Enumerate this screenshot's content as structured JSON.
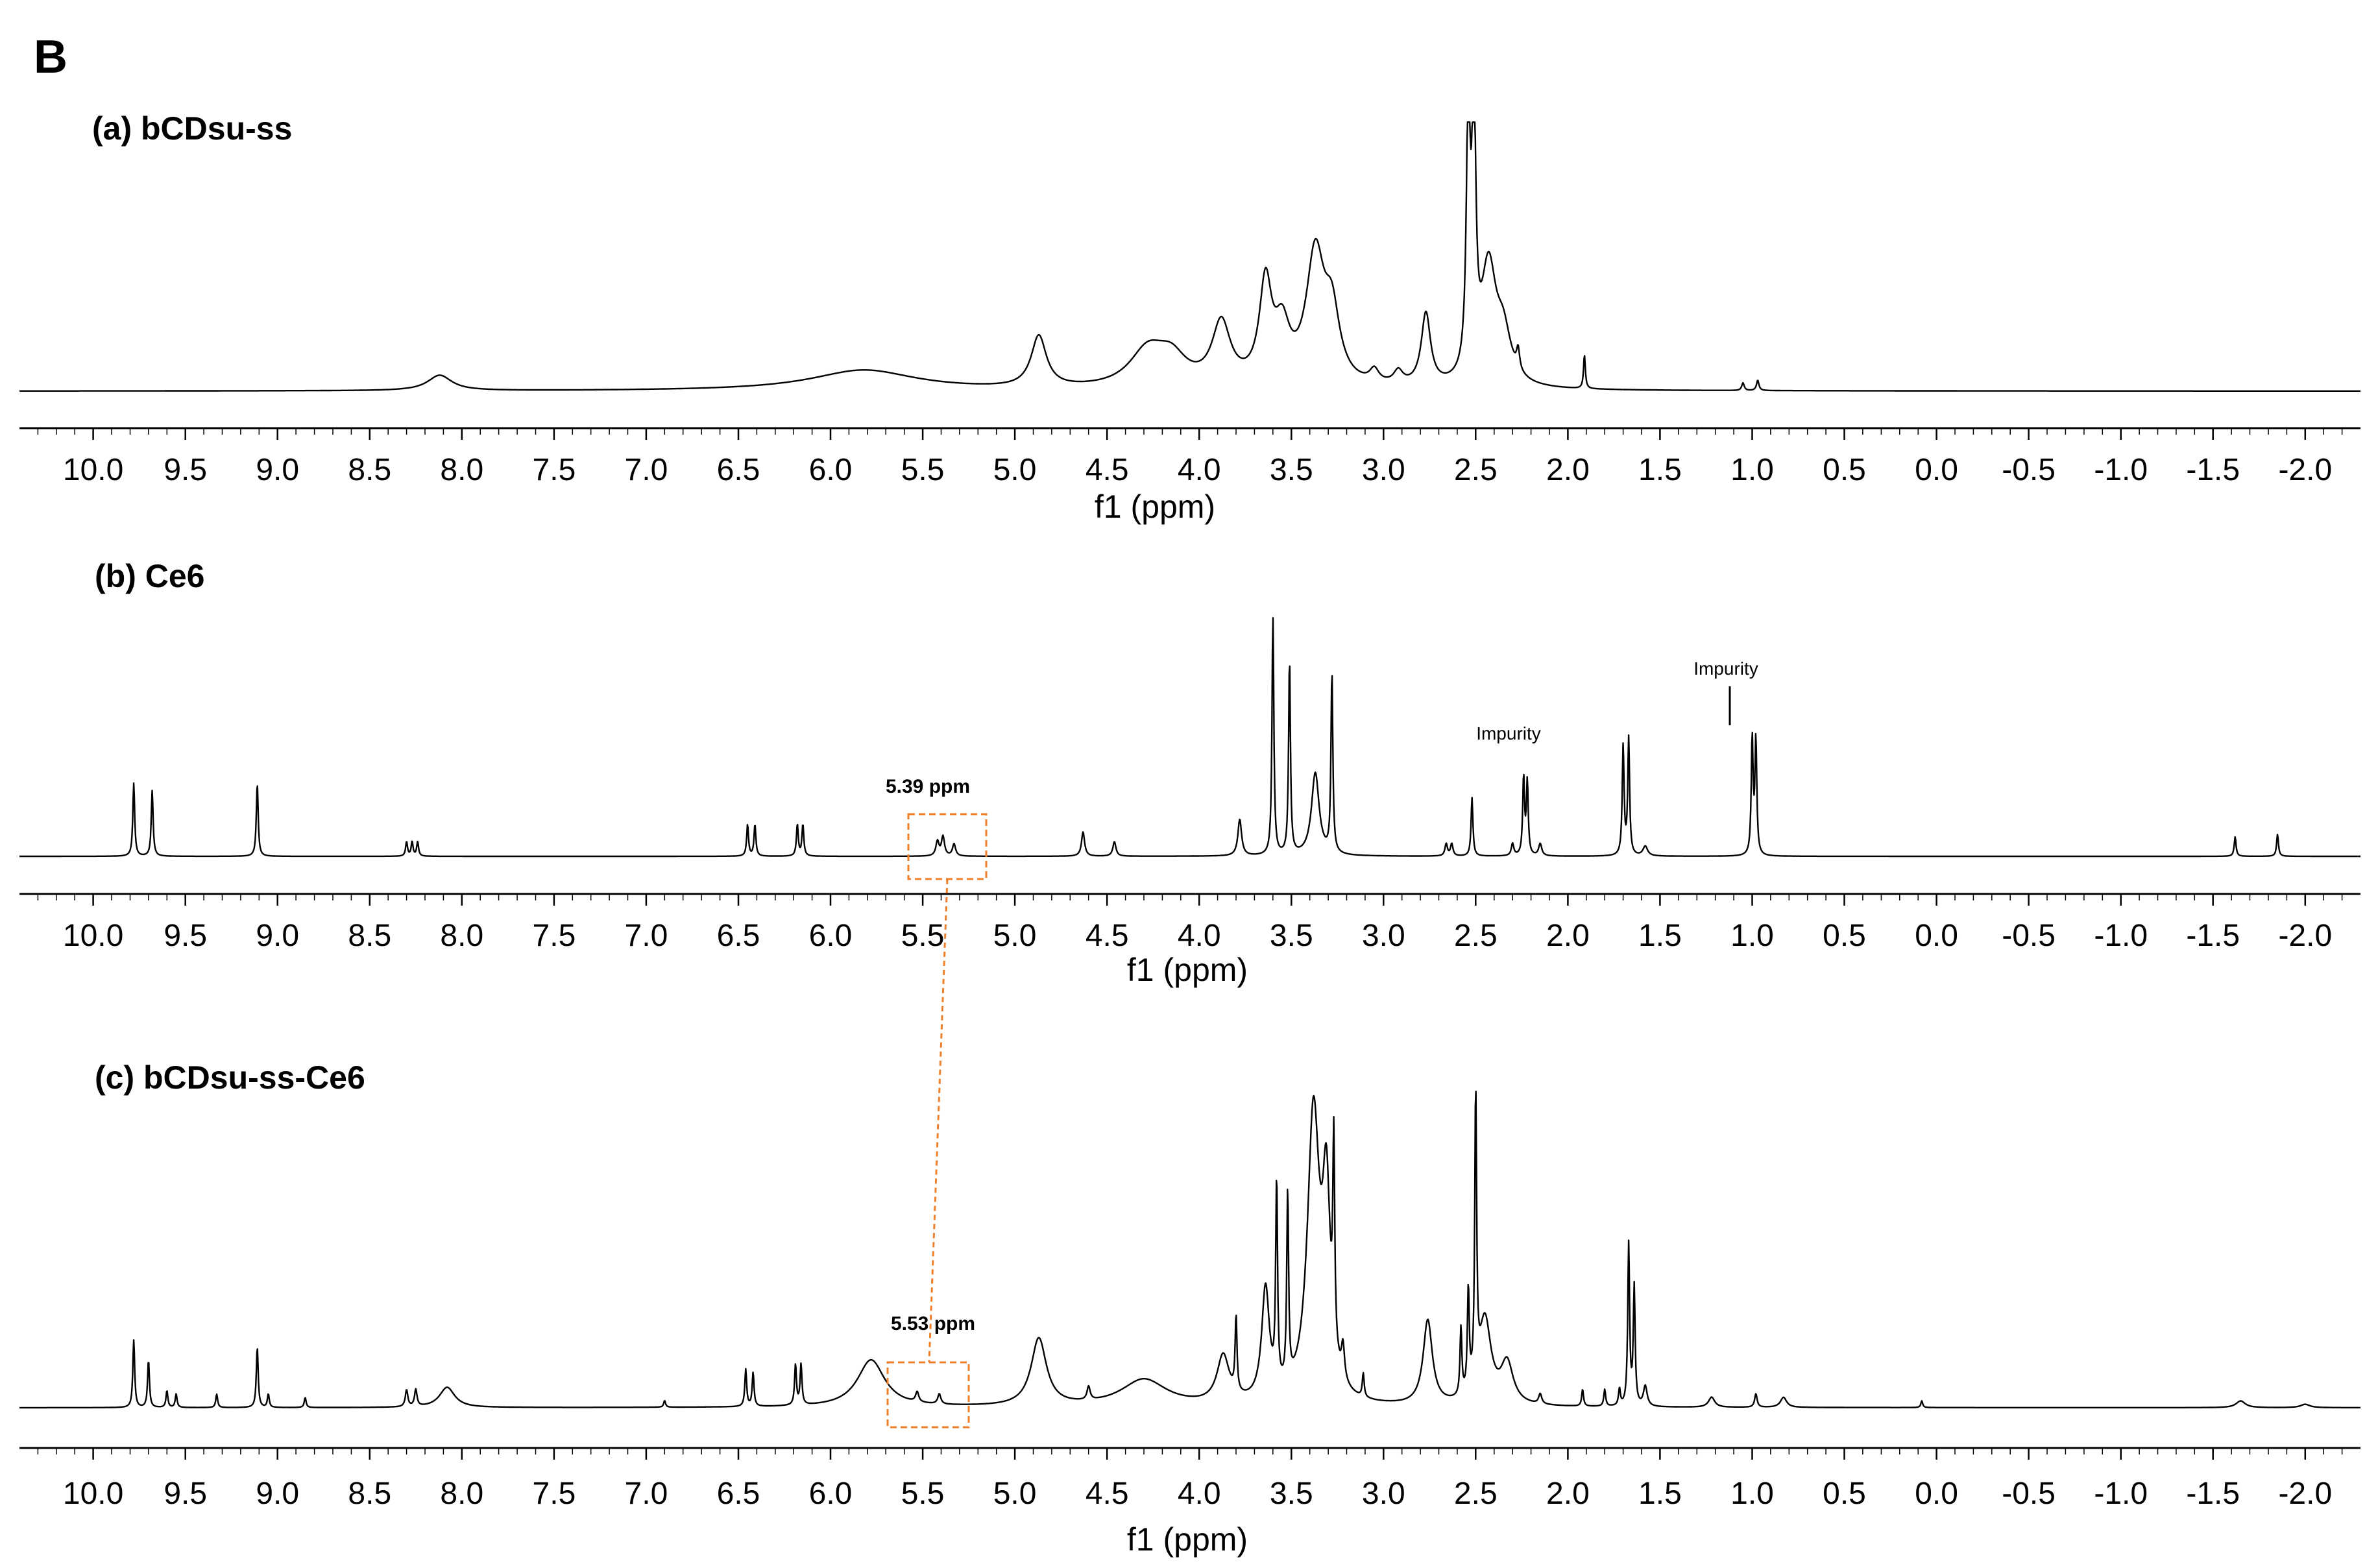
{
  "figure": {
    "panel_label": "B"
  },
  "chart_data": [
    {
      "type": "line",
      "title": "(a) bCDsu-ss",
      "xlabel": "f1 (ppm)",
      "ylabel": "",
      "xlim": [
        10.4,
        -2.3
      ],
      "x_reversed": true,
      "grid": false,
      "xticks": [
        "10.0",
        "9.5",
        "9.0",
        "8.5",
        "8.0",
        "7.5",
        "7.0",
        "6.5",
        "6.0",
        "5.5",
        "5.0",
        "4.5",
        "4.0",
        "3.5",
        "3.0",
        "2.5",
        "2.0",
        "1.5",
        "1.0",
        "0.5",
        "0.0",
        "-0.5",
        "-1.0",
        "-1.5",
        "-2.0"
      ],
      "peaks": [
        {
          "ppm": 8.12,
          "height": 0.06,
          "width": 0.08
        },
        {
          "ppm": 5.82,
          "height": 0.08,
          "width": 0.35
        },
        {
          "ppm": 4.87,
          "height": 0.2,
          "width": 0.05
        },
        {
          "ppm": 4.28,
          "height": 0.14,
          "width": 0.12
        },
        {
          "ppm": 4.15,
          "height": 0.1,
          "width": 0.1
        },
        {
          "ppm": 3.88,
          "height": 0.24,
          "width": 0.06
        },
        {
          "ppm": 3.64,
          "height": 0.38,
          "width": 0.04
        },
        {
          "ppm": 3.55,
          "height": 0.2,
          "width": 0.05
        },
        {
          "ppm": 3.37,
          "height": 0.5,
          "width": 0.06
        },
        {
          "ppm": 3.28,
          "height": 0.25,
          "width": 0.05
        },
        {
          "ppm": 3.05,
          "height": 0.05,
          "width": 0.03
        },
        {
          "ppm": 2.92,
          "height": 0.05,
          "width": 0.03
        },
        {
          "ppm": 2.77,
          "height": 0.28,
          "width": 0.03
        },
        {
          "ppm": 2.54,
          "height": 1.05,
          "width": 0.012
        },
        {
          "ppm": 2.51,
          "height": 1.05,
          "width": 0.012
        },
        {
          "ppm": 2.43,
          "height": 0.45,
          "width": 0.05
        },
        {
          "ppm": 2.35,
          "height": 0.18,
          "width": 0.05
        },
        {
          "ppm": 2.27,
          "height": 0.08,
          "width": 0.01
        },
        {
          "ppm": 1.91,
          "height": 0.13,
          "width": 0.006
        },
        {
          "ppm": 1.05,
          "height": 0.03,
          "width": 0.008
        },
        {
          "ppm": 0.97,
          "height": 0.04,
          "width": 0.008
        }
      ],
      "annotations": []
    },
    {
      "type": "line",
      "title": "(b) Ce6",
      "xlabel": "f1 (ppm)",
      "ylabel": "",
      "xlim": [
        10.4,
        -2.3
      ],
      "x_reversed": true,
      "grid": false,
      "xticks": [
        "10.0",
        "9.5",
        "9.0",
        "8.5",
        "8.0",
        "7.5",
        "7.0",
        "6.5",
        "6.0",
        "5.5",
        "5.0",
        "4.5",
        "4.0",
        "3.5",
        "3.0",
        "2.5",
        "2.0",
        "1.5",
        "1.0",
        "0.5",
        "0.0",
        "-0.5",
        "-1.0",
        "-1.5",
        "-2.0"
      ],
      "peaks": [
        {
          "ppm": 9.78,
          "height": 0.3,
          "width": 0.006
        },
        {
          "ppm": 9.68,
          "height": 0.27,
          "width": 0.006
        },
        {
          "ppm": 9.11,
          "height": 0.3,
          "width": 0.006
        },
        {
          "ppm": 8.3,
          "height": 0.06,
          "width": 0.006
        },
        {
          "ppm": 8.27,
          "height": 0.06,
          "width": 0.006
        },
        {
          "ppm": 8.24,
          "height": 0.06,
          "width": 0.006
        },
        {
          "ppm": 6.45,
          "height": 0.13,
          "width": 0.006
        },
        {
          "ppm": 6.41,
          "height": 0.13,
          "width": 0.006
        },
        {
          "ppm": 6.18,
          "height": 0.13,
          "width": 0.006
        },
        {
          "ppm": 6.15,
          "height": 0.13,
          "width": 0.006
        },
        {
          "ppm": 5.42,
          "height": 0.06,
          "width": 0.01
        },
        {
          "ppm": 5.39,
          "height": 0.08,
          "width": 0.01
        },
        {
          "ppm": 5.33,
          "height": 0.05,
          "width": 0.01
        },
        {
          "ppm": 4.63,
          "height": 0.1,
          "width": 0.01
        },
        {
          "ppm": 4.46,
          "height": 0.06,
          "width": 0.01
        },
        {
          "ppm": 3.78,
          "height": 0.15,
          "width": 0.012
        },
        {
          "ppm": 3.6,
          "height": 0.98,
          "width": 0.006
        },
        {
          "ppm": 3.51,
          "height": 0.8,
          "width": 0.006
        },
        {
          "ppm": 3.37,
          "height": 0.34,
          "width": 0.025
        },
        {
          "ppm": 3.28,
          "height": 0.74,
          "width": 0.006
        },
        {
          "ppm": 2.66,
          "height": 0.05,
          "width": 0.008
        },
        {
          "ppm": 2.63,
          "height": 0.05,
          "width": 0.008
        },
        {
          "ppm": 2.52,
          "height": 0.24,
          "width": 0.006
        },
        {
          "ppm": 2.3,
          "height": 0.05,
          "width": 0.008
        },
        {
          "ppm": 2.24,
          "height": 0.32,
          "width": 0.006
        },
        {
          "ppm": 2.22,
          "height": 0.3,
          "width": 0.006
        },
        {
          "ppm": 2.15,
          "height": 0.05,
          "width": 0.01
        },
        {
          "ppm": 1.7,
          "height": 0.45,
          "width": 0.006
        },
        {
          "ppm": 1.67,
          "height": 0.48,
          "width": 0.006
        },
        {
          "ppm": 1.58,
          "height": 0.04,
          "width": 0.015
        },
        {
          "ppm": 1.0,
          "height": 0.48,
          "width": 0.006
        },
        {
          "ppm": 0.98,
          "height": 0.47,
          "width": 0.006
        },
        {
          "ppm": -1.62,
          "height": 0.08,
          "width": 0.006
        },
        {
          "ppm": -1.85,
          "height": 0.09,
          "width": 0.006
        }
      ],
      "annotations": [
        {
          "text": "Impurity",
          "ppm": 2.22
        },
        {
          "text": "Impurity",
          "ppm": 1.0
        },
        {
          "text": "5.39 ppm",
          "ppm": 5.39
        }
      ]
    },
    {
      "type": "line",
      "title": "(c) bCDsu-ss-Ce6",
      "xlabel": "f1 (ppm)",
      "ylabel": "",
      "xlim": [
        10.4,
        -2.3
      ],
      "x_reversed": true,
      "grid": false,
      "xticks": [
        "10.0",
        "9.5",
        "9.0",
        "8.5",
        "8.0",
        "7.5",
        "7.0",
        "6.5",
        "6.0",
        "5.5",
        "5.0",
        "4.5",
        "4.0",
        "3.5",
        "3.0",
        "2.5",
        "2.0",
        "1.5",
        "1.0",
        "0.5",
        "0.0",
        "-0.5",
        "-1.0",
        "-1.5",
        "-2.0"
      ],
      "peaks": [
        {
          "ppm": 9.78,
          "height": 0.2,
          "width": 0.006
        },
        {
          "ppm": 9.7,
          "height": 0.14,
          "width": 0.006
        },
        {
          "ppm": 9.6,
          "height": 0.05,
          "width": 0.006
        },
        {
          "ppm": 9.55,
          "height": 0.04,
          "width": 0.006
        },
        {
          "ppm": 9.33,
          "height": 0.04,
          "width": 0.006
        },
        {
          "ppm": 9.11,
          "height": 0.18,
          "width": 0.006
        },
        {
          "ppm": 9.05,
          "height": 0.04,
          "width": 0.006
        },
        {
          "ppm": 8.85,
          "height": 0.03,
          "width": 0.006
        },
        {
          "ppm": 8.3,
          "height": 0.05,
          "width": 0.008
        },
        {
          "ppm": 8.25,
          "height": 0.05,
          "width": 0.008
        },
        {
          "ppm": 8.08,
          "height": 0.06,
          "width": 0.05
        },
        {
          "ppm": 6.9,
          "height": 0.02,
          "width": 0.006
        },
        {
          "ppm": 6.46,
          "height": 0.11,
          "width": 0.006
        },
        {
          "ppm": 6.42,
          "height": 0.1,
          "width": 0.006
        },
        {
          "ppm": 6.19,
          "height": 0.12,
          "width": 0.006
        },
        {
          "ppm": 6.16,
          "height": 0.12,
          "width": 0.006
        },
        {
          "ppm": 5.78,
          "height": 0.14,
          "width": 0.09
        },
        {
          "ppm": 5.53,
          "height": 0.03,
          "width": 0.01
        },
        {
          "ppm": 5.41,
          "height": 0.03,
          "width": 0.01
        },
        {
          "ppm": 4.87,
          "height": 0.2,
          "width": 0.05
        },
        {
          "ppm": 4.6,
          "height": 0.04,
          "width": 0.01
        },
        {
          "ppm": 4.3,
          "height": 0.08,
          "width": 0.15
        },
        {
          "ppm": 3.87,
          "height": 0.14,
          "width": 0.04
        },
        {
          "ppm": 3.8,
          "height": 0.22,
          "width": 0.006
        },
        {
          "ppm": 3.64,
          "height": 0.33,
          "width": 0.025
        },
        {
          "ppm": 3.58,
          "height": 0.6,
          "width": 0.006
        },
        {
          "ppm": 3.52,
          "height": 0.56,
          "width": 0.006
        },
        {
          "ppm": 3.38,
          "height": 0.85,
          "width": 0.04
        },
        {
          "ppm": 3.31,
          "height": 0.55,
          "width": 0.025
        },
        {
          "ppm": 3.27,
          "height": 0.6,
          "width": 0.006
        },
        {
          "ppm": 3.22,
          "height": 0.1,
          "width": 0.01
        },
        {
          "ppm": 3.11,
          "height": 0.07,
          "width": 0.006
        },
        {
          "ppm": 2.76,
          "height": 0.25,
          "width": 0.03
        },
        {
          "ppm": 2.58,
          "height": 0.2,
          "width": 0.006
        },
        {
          "ppm": 2.54,
          "height": 0.3,
          "width": 0.006
        },
        {
          "ppm": 2.5,
          "height": 0.85,
          "width": 0.006
        },
        {
          "ppm": 2.45,
          "height": 0.25,
          "width": 0.04
        },
        {
          "ppm": 2.33,
          "height": 0.12,
          "width": 0.04
        },
        {
          "ppm": 2.15,
          "height": 0.03,
          "width": 0.01
        },
        {
          "ppm": 1.92,
          "height": 0.05,
          "width": 0.006
        },
        {
          "ppm": 1.8,
          "height": 0.05,
          "width": 0.006
        },
        {
          "ppm": 1.72,
          "height": 0.05,
          "width": 0.006
        },
        {
          "ppm": 1.67,
          "height": 0.48,
          "width": 0.006
        },
        {
          "ppm": 1.64,
          "height": 0.35,
          "width": 0.006
        },
        {
          "ppm": 1.58,
          "height": 0.06,
          "width": 0.012
        },
        {
          "ppm": 1.22,
          "height": 0.03,
          "width": 0.02
        },
        {
          "ppm": 0.98,
          "height": 0.04,
          "width": 0.008
        },
        {
          "ppm": 0.83,
          "height": 0.03,
          "width": 0.02
        },
        {
          "ppm": 0.08,
          "height": 0.02,
          "width": 0.006
        },
        {
          "ppm": -1.65,
          "height": 0.02,
          "width": 0.03
        },
        {
          "ppm": -2.0,
          "height": 0.01,
          "width": 0.03
        }
      ],
      "annotations": [
        {
          "text": "5.53 ppm",
          "ppm": 5.53
        }
      ]
    }
  ],
  "colors": {
    "trace": "#000000",
    "highlight": "#f07f2a"
  }
}
